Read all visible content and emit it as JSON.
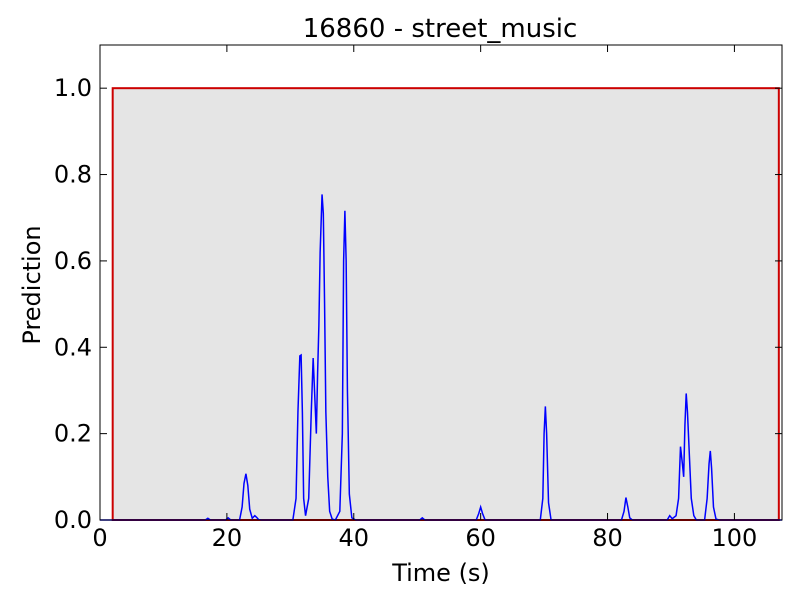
{
  "chart_data": {
    "type": "line",
    "title": "16860 - street_music",
    "xlabel": "Time (s)",
    "ylabel": "Prediction",
    "xlim": [
      0,
      107.5
    ],
    "ylim": [
      0,
      1.1
    ],
    "x_ticks": [
      0,
      20,
      40,
      60,
      80,
      100
    ],
    "y_ticks": [
      0.0,
      0.2,
      0.4,
      0.6,
      0.8,
      1.0
    ],
    "x_tick_labels": [
      "0",
      "20",
      "40",
      "60",
      "80",
      "100"
    ],
    "y_tick_labels": [
      "0.0",
      "0.2",
      "0.4",
      "0.6",
      "0.8",
      "1.0"
    ],
    "grid": false,
    "annotation_region": {
      "x_start": 2.0,
      "x_end": 107.0,
      "y_top": 1.0,
      "fill_color": "#e5e5e5",
      "edge_color": "#cc0000"
    },
    "series": [
      {
        "color": "#0000ff",
        "x": [
          0,
          16.6,
          17.0,
          17.4,
          19.8,
          20.2,
          20.6,
          22.0,
          22.4,
          22.7,
          23.0,
          23.3,
          23.6,
          24.0,
          24.4,
          24.7,
          25.0,
          25.4,
          30.4,
          30.9,
          31.2,
          31.5,
          31.7,
          31.9,
          32.1,
          32.4,
          32.9,
          33.3,
          33.6,
          33.9,
          34.1,
          34.3,
          34.5,
          34.7,
          35.0,
          35.2,
          35.4,
          35.6,
          35.9,
          36.2,
          36.6,
          37.1,
          37.8,
          38.2,
          38.4,
          38.6,
          38.8,
          39.0,
          39.3,
          39.7,
          40.3,
          50.4,
          50.8,
          51.2,
          59.3,
          59.7,
          60.0,
          60.3,
          60.7,
          69.4,
          69.8,
          70.0,
          70.2,
          70.4,
          70.7,
          71.1,
          82.2,
          82.6,
          82.9,
          83.2,
          83.5,
          83.9,
          89.4,
          89.8,
          90.2,
          90.8,
          91.2,
          91.5,
          91.8,
          92.0,
          92.2,
          92.4,
          92.6,
          92.9,
          93.2,
          93.6,
          94.0,
          95.3,
          95.7,
          96.0,
          96.2,
          96.4,
          96.7,
          97.1,
          97.6,
          107.5
        ],
        "y": [
          0.0,
          0.0,
          0.004,
          0.0,
          0.0,
          0.005,
          0.0,
          0.0,
          0.03,
          0.085,
          0.107,
          0.08,
          0.025,
          0.004,
          0.01,
          0.006,
          0.001,
          0.0,
          0.0,
          0.05,
          0.25,
          0.38,
          0.382,
          0.25,
          0.05,
          0.01,
          0.05,
          0.25,
          0.375,
          0.27,
          0.2,
          0.34,
          0.45,
          0.62,
          0.754,
          0.71,
          0.5,
          0.25,
          0.1,
          0.02,
          0.002,
          0.0,
          0.02,
          0.2,
          0.6,
          0.716,
          0.6,
          0.3,
          0.06,
          0.005,
          0.0,
          0.0,
          0.005,
          0.0,
          0.0,
          0.015,
          0.03,
          0.015,
          0.0,
          0.0,
          0.05,
          0.2,
          0.263,
          0.2,
          0.04,
          0.0,
          0.0,
          0.02,
          0.052,
          0.03,
          0.005,
          0.0,
          0.0,
          0.01,
          0.003,
          0.01,
          0.05,
          0.17,
          0.13,
          0.1,
          0.22,
          0.293,
          0.25,
          0.15,
          0.05,
          0.01,
          0.0,
          0.0,
          0.05,
          0.13,
          0.16,
          0.12,
          0.03,
          0.002,
          0.0,
          0.0
        ]
      }
    ]
  }
}
